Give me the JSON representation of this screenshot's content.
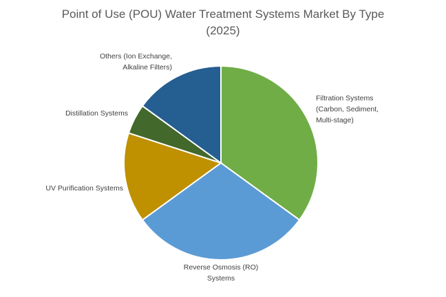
{
  "chart_data": {
    "type": "pie",
    "title": [
      "Point of Use (POU) Water Treatment Systems Market By Type",
      "(2025)"
    ],
    "slices": [
      {
        "name": "Filtration Systems (Carbon, Sediment, Multi-stage)",
        "label_lines": [
          "Filtration Systems",
          "(Carbon, Sediment,",
          "Multi-stage)"
        ],
        "value": 35,
        "color": "#70AD47"
      },
      {
        "name": "Reverse Osmosis (RO) Systems",
        "label_lines": [
          "Reverse Osmosis (RO)",
          "Systems"
        ],
        "value": 30,
        "color": "#5B9BD5"
      },
      {
        "name": "UV Purification Systems",
        "label_lines": [
          "UV Purification Systems"
        ],
        "value": 15,
        "color": "#BF9000"
      },
      {
        "name": "Distillation Systems",
        "label_lines": [
          "Distillation Systems"
        ],
        "value": 5,
        "color": "#43682B"
      },
      {
        "name": "Others (Ion Exchange, Alkaline Filters)",
        "label_lines": [
          "Others (Ion Exchange,",
          "Alkaline Filters)"
        ],
        "value": 15,
        "color": "#255E91"
      }
    ],
    "start_angle_deg": 0,
    "direction": "clockwise",
    "legend": "none"
  }
}
